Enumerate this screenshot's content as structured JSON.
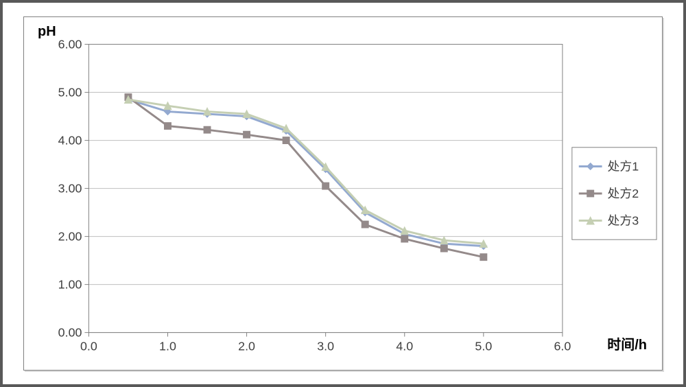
{
  "chart": {
    "type": "line",
    "outer_border_color": "#595959",
    "outer_border_width": 4,
    "panel_border_color": "#808080",
    "panel_background": "#ffffff",
    "plot_background": "#ffffff",
    "y_axis": {
      "title": "pH",
      "title_fontsize": 20,
      "title_fontweight": "bold",
      "min": 0.0,
      "max": 6.0,
      "ticks": [
        "0.00",
        "1.00",
        "2.00",
        "3.00",
        "4.00",
        "5.00",
        "6.00"
      ],
      "tick_values": [
        0,
        1,
        2,
        3,
        4,
        5,
        6
      ],
      "tick_fontsize": 18,
      "gridline_color": "#bfbfbf",
      "gridline_width": 1
    },
    "x_axis": {
      "title": "时间/h",
      "title_fontsize": 20,
      "title_fontweight": "bold",
      "min": 0.0,
      "max": 6.0,
      "ticks": [
        "0.0",
        "1.0",
        "2.0",
        "3.0",
        "4.0",
        "5.0",
        "6.0"
      ],
      "tick_values": [
        0,
        1,
        2,
        3,
        4,
        5,
        6
      ],
      "tick_fontsize": 18,
      "gridline_color": "none",
      "axis_line_color": "#808080"
    },
    "tick_mark_color": "#808080",
    "tick_mark_length": 6,
    "series": [
      {
        "name": "处方1",
        "color": "#93a9d0",
        "line_width": 3,
        "marker": "diamond",
        "marker_size": 10,
        "marker_fill": "#93a9d0",
        "marker_stroke": "#93a9d0",
        "x": [
          0.5,
          1.0,
          1.5,
          2.0,
          2.5,
          3.0,
          3.5,
          4.0,
          4.5,
          5.0
        ],
        "y": [
          4.85,
          4.6,
          4.55,
          4.5,
          4.2,
          3.4,
          2.5,
          2.05,
          1.85,
          1.8
        ]
      },
      {
        "name": "处方2",
        "color": "#948a8a",
        "line_width": 3,
        "marker": "square",
        "marker_size": 10,
        "marker_fill": "#948a8a",
        "marker_stroke": "#948a8a",
        "x": [
          0.5,
          1.0,
          1.5,
          2.0,
          2.5,
          3.0,
          3.5,
          4.0,
          4.5,
          5.0
        ],
        "y": [
          4.9,
          4.3,
          4.22,
          4.12,
          4.0,
          3.05,
          2.25,
          1.95,
          1.75,
          1.57
        ]
      },
      {
        "name": "处方3",
        "color": "#c5cfb3",
        "line_width": 3,
        "marker": "triangle",
        "marker_size": 11,
        "marker_fill": "#c5cfb3",
        "marker_stroke": "#c5cfb3",
        "x": [
          0.5,
          1.0,
          1.5,
          2.0,
          2.5,
          3.0,
          3.5,
          4.0,
          4.5,
          5.0
        ],
        "y": [
          4.85,
          4.72,
          4.6,
          4.55,
          4.25,
          3.45,
          2.55,
          2.12,
          1.92,
          1.85
        ]
      }
    ],
    "legend": {
      "position": "right",
      "border_color": "#808080",
      "border_width": 1,
      "background": "#ffffff",
      "item_fontsize": 18
    }
  }
}
